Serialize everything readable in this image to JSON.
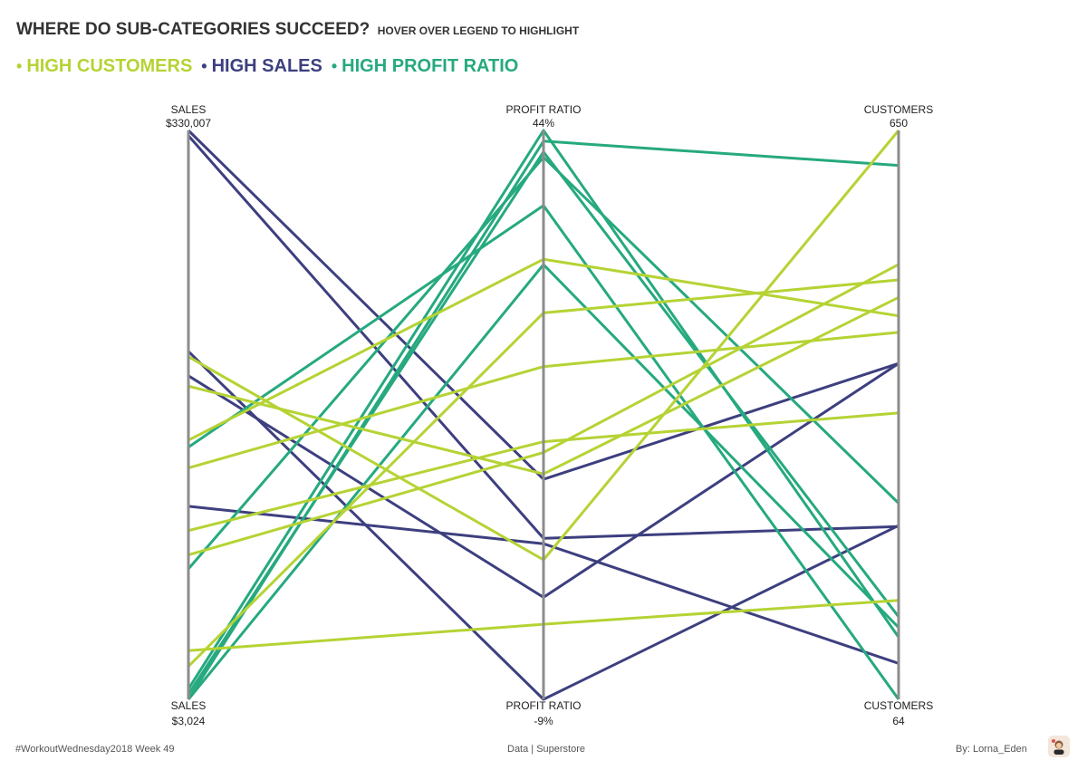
{
  "header": {
    "title": "WHERE DO SUB-CATEGORIES SUCCEED?",
    "subtitle": "HOVER OVER LEGEND TO HIGHLIGHT"
  },
  "legend": [
    {
      "dot": "•",
      "label": "HIGH CUSTOMERS",
      "color": "#b5d334"
    },
    {
      "dot": "•",
      "label": "HIGH SALES",
      "color": "#3d3f7f"
    },
    {
      "dot": "•",
      "label": "HIGH PROFIT RATIO",
      "color": "#26a97f"
    }
  ],
  "chart_data": {
    "type": "parallel-coordinates",
    "axes": [
      {
        "name": "SALES",
        "top_label": "SALES",
        "top_value": "$330,007",
        "bottom_label": "SALES",
        "bottom_value": "$3,024",
        "min": 3024,
        "max": 330007
      },
      {
        "name": "PROFIT RATIO",
        "top_label": "PROFIT RATIO",
        "top_value": "44%",
        "bottom_label": "PROFIT RATIO",
        "bottom_value": "-9%",
        "min": -9,
        "max": 44
      },
      {
        "name": "CUSTOMERS",
        "top_label": "CUSTOMERS",
        "top_value": "650",
        "bottom_label": "CUSTOMERS",
        "bottom_value": "64",
        "min": 64,
        "max": 650
      }
    ],
    "groups": [
      {
        "name": "HIGH CUSTOMERS",
        "color": "#b5d334"
      },
      {
        "name": "HIGH SALES",
        "color": "#3d3f7f"
      },
      {
        "name": "HIGH PROFIT RATIO",
        "color": "#26a97f"
      }
    ],
    "series": [
      {
        "group": "HIGH SALES",
        "values": [
          330007,
          11.5,
          410
        ]
      },
      {
        "group": "HIGH SALES",
        "values": [
          327000,
          6,
          242
        ]
      },
      {
        "group": "HIGH SALES",
        "values": [
          203000,
          -9,
          243
        ]
      },
      {
        "group": "HIGH SALES",
        "values": [
          189000,
          0.5,
          410
        ]
      },
      {
        "group": "HIGH SALES",
        "values": [
          114000,
          5.5,
          101
        ]
      },
      {
        "group": "HIGH PROFIT RATIO",
        "values": [
          3024,
          43,
          614
        ]
      },
      {
        "group": "HIGH PROFIT RATIO",
        "values": [
          9000,
          44,
          128
        ]
      },
      {
        "group": "HIGH PROFIT RATIO",
        "values": [
          6000,
          42,
          149
        ]
      },
      {
        "group": "HIGH PROFIT RATIO",
        "values": [
          148000,
          37,
          64
        ]
      },
      {
        "group": "HIGH PROFIT RATIO",
        "values": [
          3024,
          31.5,
          138
        ]
      },
      {
        "group": "HIGH PROFIT RATIO",
        "values": [
          78000,
          41.5,
          266
        ]
      },
      {
        "group": "HIGH CUSTOMERS",
        "values": [
          200000,
          4,
          650
        ]
      },
      {
        "group": "HIGH CUSTOMERS",
        "values": [
          136000,
          22,
          442
        ]
      },
      {
        "group": "HIGH CUSTOMERS",
        "values": [
          183000,
          12,
          478
        ]
      },
      {
        "group": "HIGH CUSTOMERS",
        "values": [
          152000,
          32,
          459
        ]
      },
      {
        "group": "HIGH CUSTOMERS",
        "values": [
          22000,
          27,
          496
        ]
      },
      {
        "group": "HIGH CUSTOMERS",
        "values": [
          100000,
          15,
          359
        ]
      },
      {
        "group": "HIGH CUSTOMERS",
        "values": [
          86000,
          14,
          512
        ]
      },
      {
        "group": "HIGH CUSTOMERS",
        "values": [
          31000,
          -2,
          166
        ]
      }
    ]
  },
  "footer": {
    "left": "#WorkoutWednesday2018 Week 49",
    "center": "Data | Superstore",
    "right": "By: Lorna_Eden",
    "badge_icon": "portrait-icon"
  }
}
